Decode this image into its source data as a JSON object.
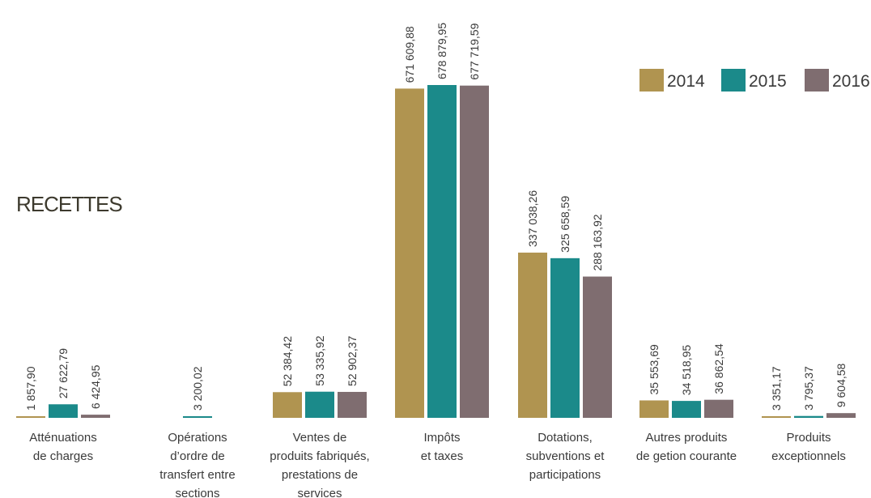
{
  "chart_data": {
    "type": "bar",
    "title": "RECETTES",
    "xlabel": "",
    "ylabel": "",
    "ylim": [
      0,
      700000
    ],
    "grid": false,
    "legend_position": "top-right",
    "categories": [
      [
        "Atténuations",
        "de charges"
      ],
      [
        "Opérations",
        "d’ordre de",
        "transfert entre",
        "sections"
      ],
      [
        "Ventes de",
        "produits fabriqués,",
        "prestations de",
        "services"
      ],
      [
        "Impôts",
        "et taxes"
      ],
      [
        "Dotations,",
        "subventions et",
        "participations"
      ],
      [
        "Autres produits",
        "de getion courante"
      ],
      [
        "Produits",
        "exceptionnels"
      ]
    ],
    "series": [
      {
        "name": "2014",
        "color": "#b09450",
        "values": [
          1857.9,
          null,
          52384.42,
          671609.88,
          337038.26,
          35553.69,
          3351.17
        ],
        "labels": [
          "1 857,90",
          "",
          "52 384,42",
          "671 609,88",
          "337 038,26",
          "35 553,69",
          "3 351,17"
        ]
      },
      {
        "name": "2015",
        "color": "#1b8a8a",
        "values": [
          27622.79,
          3200.02,
          53335.92,
          678879.95,
          325658.59,
          34518.95,
          3795.37
        ],
        "labels": [
          "27 622,79",
          "3 200,02",
          "53 335,92",
          "678 879,95",
          "325 658,59",
          "34 518,95",
          "3 795,37"
        ]
      },
      {
        "name": "2016",
        "color": "#7f6d70",
        "values": [
          6424.95,
          null,
          52902.37,
          677719.59,
          288163.92,
          36862.54,
          9604.58
        ],
        "labels": [
          "6 424,95",
          "",
          "52 902,37",
          "677 719,59",
          "288 163,92",
          "36 862,54",
          "9 604,58"
        ]
      }
    ]
  }
}
